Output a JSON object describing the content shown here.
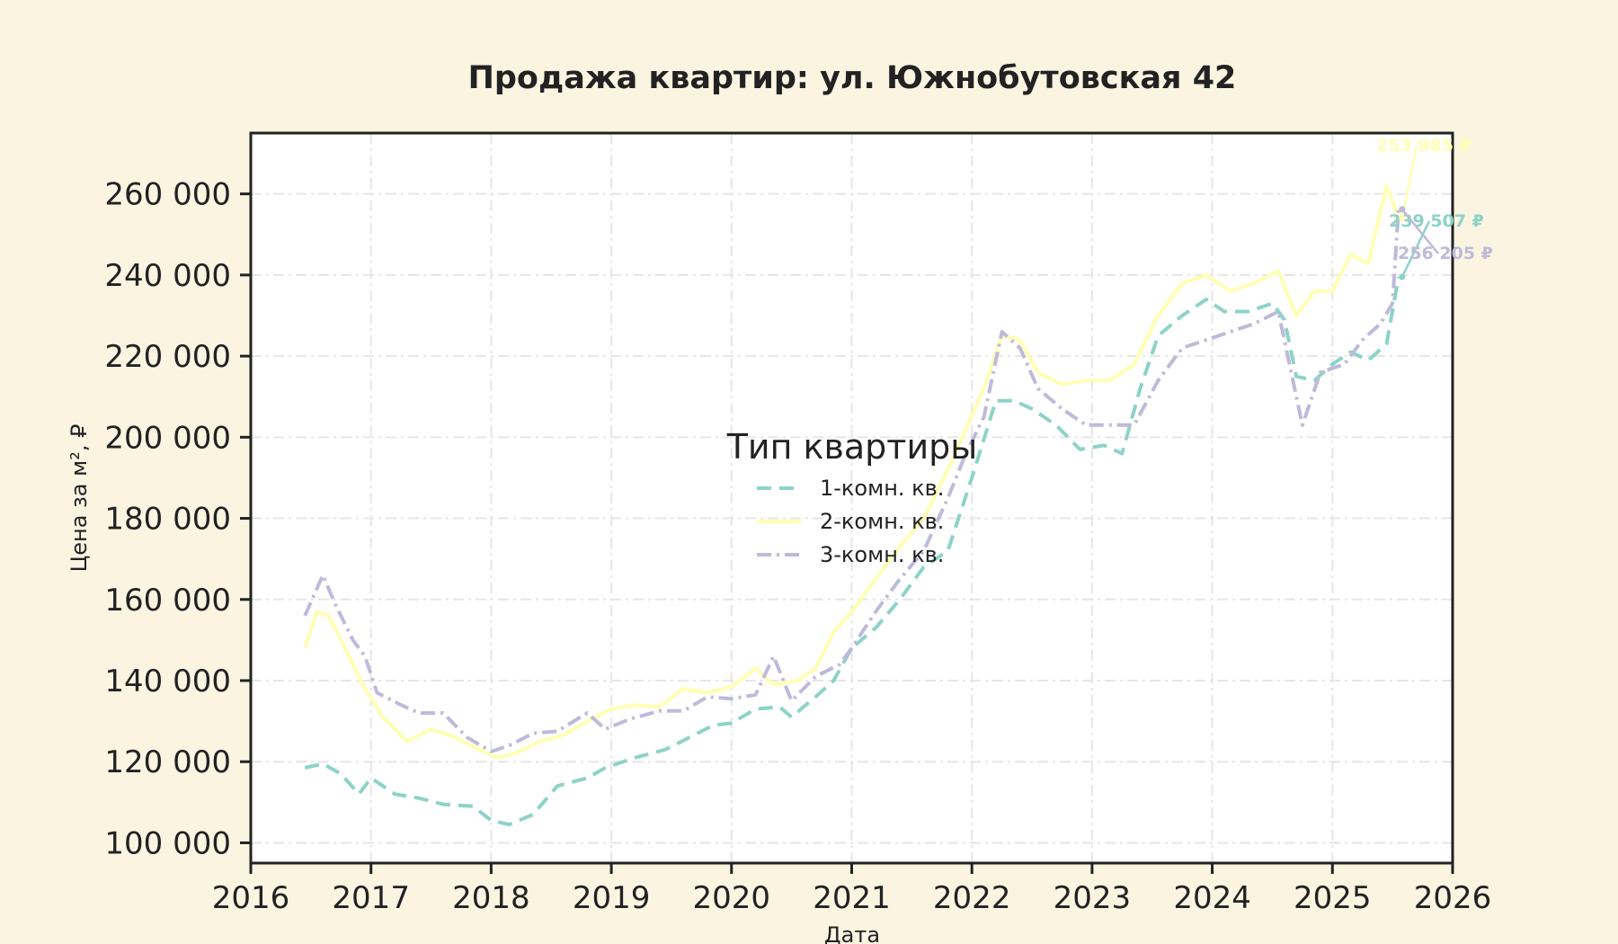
{
  "chart_data": {
    "type": "line",
    "title": "Продажа квартир: ул. Южнобутовская 42",
    "xlabel": "Дата",
    "ylabel": "Цена за м², ₽",
    "xlim": [
      2016,
      2026
    ],
    "ylim": [
      95000,
      275000
    ],
    "x_ticks": [
      "2016",
      "2017",
      "2018",
      "2019",
      "2020",
      "2021",
      "2022",
      "2023",
      "2024",
      "2025",
      "2026"
    ],
    "y_ticks": [
      {
        "value": 100000,
        "label": "100 000"
      },
      {
        "value": 120000,
        "label": "120 000"
      },
      {
        "value": 140000,
        "label": "140 000"
      },
      {
        "value": 160000,
        "label": "160 000"
      },
      {
        "value": 180000,
        "label": "180 000"
      },
      {
        "value": 200000,
        "label": "200 000"
      },
      {
        "value": 220000,
        "label": "220 000"
      },
      {
        "value": 240000,
        "label": "240 000"
      },
      {
        "value": 260000,
        "label": "260 000"
      }
    ],
    "grid": true,
    "legend": {
      "title": "Тип квартиры",
      "placement": "center"
    },
    "series": [
      {
        "name": "1-комн. кв.",
        "color": "#8dd3c7",
        "dash": "dashed",
        "end_label": "239 507 ₽",
        "points": [
          [
            2016.45,
            118500
          ],
          [
            2016.6,
            119500
          ],
          [
            2016.75,
            117000
          ],
          [
            2016.9,
            112000
          ],
          [
            2017.0,
            116000
          ],
          [
            2017.2,
            112000
          ],
          [
            2017.4,
            111000
          ],
          [
            2017.6,
            109500
          ],
          [
            2017.85,
            109000
          ],
          [
            2018.0,
            105500
          ],
          [
            2018.15,
            104500
          ],
          [
            2018.35,
            107000
          ],
          [
            2018.55,
            114000
          ],
          [
            2018.8,
            116000
          ],
          [
            2018.95,
            118500
          ],
          [
            2019.2,
            121000
          ],
          [
            2019.45,
            123000
          ],
          [
            2019.65,
            126000
          ],
          [
            2019.85,
            129000
          ],
          [
            2020.0,
            129500
          ],
          [
            2020.2,
            133000
          ],
          [
            2020.4,
            133500
          ],
          [
            2020.5,
            131000
          ],
          [
            2020.7,
            136000
          ],
          [
            2020.85,
            140000
          ],
          [
            2021.0,
            148000
          ],
          [
            2021.2,
            153000
          ],
          [
            2021.4,
            160000
          ],
          [
            2021.6,
            168000
          ],
          [
            2021.8,
            172000
          ],
          [
            2022.0,
            190000
          ],
          [
            2022.2,
            209000
          ],
          [
            2022.35,
            209000
          ],
          [
            2022.5,
            207000
          ],
          [
            2022.7,
            203000
          ],
          [
            2022.9,
            197000
          ],
          [
            2023.1,
            198000
          ],
          [
            2023.25,
            196000
          ],
          [
            2023.4,
            212000
          ],
          [
            2023.55,
            225000
          ],
          [
            2023.75,
            230000
          ],
          [
            2023.95,
            234000
          ],
          [
            2024.1,
            231000
          ],
          [
            2024.3,
            231000
          ],
          [
            2024.5,
            233000
          ],
          [
            2024.6,
            229000
          ],
          [
            2024.7,
            215000
          ],
          [
            2024.85,
            214000
          ],
          [
            2025.0,
            218000
          ],
          [
            2025.15,
            221000
          ],
          [
            2025.3,
            219000
          ],
          [
            2025.45,
            223000
          ],
          [
            2025.55,
            239507
          ]
        ]
      },
      {
        "name": "2-комн. кв.",
        "color": "#ffffb3",
        "dash": "solid",
        "end_label": "253 985 ₽",
        "points": [
          [
            2016.45,
            148000
          ],
          [
            2016.55,
            157000
          ],
          [
            2016.65,
            156000
          ],
          [
            2016.8,
            147000
          ],
          [
            2016.95,
            138000
          ],
          [
            2017.1,
            131000
          ],
          [
            2017.3,
            125000
          ],
          [
            2017.5,
            128000
          ],
          [
            2017.7,
            126000
          ],
          [
            2017.9,
            123000
          ],
          [
            2018.05,
            121000
          ],
          [
            2018.2,
            122000
          ],
          [
            2018.4,
            125000
          ],
          [
            2018.6,
            126500
          ],
          [
            2018.8,
            130000
          ],
          [
            2019.0,
            133000
          ],
          [
            2019.2,
            134000
          ],
          [
            2019.4,
            133500
          ],
          [
            2019.6,
            138000
          ],
          [
            2019.8,
            137000
          ],
          [
            2020.0,
            138500
          ],
          [
            2020.2,
            143000
          ],
          [
            2020.35,
            139000
          ],
          [
            2020.55,
            140000
          ],
          [
            2020.7,
            143000
          ],
          [
            2020.85,
            152000
          ],
          [
            2021.0,
            157000
          ],
          [
            2021.2,
            165000
          ],
          [
            2021.4,
            173000
          ],
          [
            2021.6,
            180000
          ],
          [
            2021.8,
            192000
          ],
          [
            2021.95,
            202000
          ],
          [
            2022.1,
            212000
          ],
          [
            2022.25,
            225000
          ],
          [
            2022.4,
            224000
          ],
          [
            2022.55,
            216000
          ],
          [
            2022.75,
            213000
          ],
          [
            2022.95,
            214000
          ],
          [
            2023.15,
            214000
          ],
          [
            2023.35,
            218000
          ],
          [
            2023.55,
            230000
          ],
          [
            2023.75,
            238000
          ],
          [
            2023.95,
            240000
          ],
          [
            2024.15,
            236000
          ],
          [
            2024.35,
            238000
          ],
          [
            2024.55,
            241000
          ],
          [
            2024.7,
            230000
          ],
          [
            2024.85,
            236000
          ],
          [
            2025.0,
            236000
          ],
          [
            2025.15,
            245000
          ],
          [
            2025.3,
            243000
          ],
          [
            2025.45,
            262000
          ],
          [
            2025.55,
            253985
          ]
        ]
      },
      {
        "name": "3-комн. кв.",
        "color": "#bebada",
        "dash": "dashdot",
        "end_label": "256 205 ₽",
        "points": [
          [
            2016.45,
            156000
          ],
          [
            2016.6,
            166000
          ],
          [
            2016.7,
            159000
          ],
          [
            2016.85,
            150000
          ],
          [
            2016.95,
            146000
          ],
          [
            2017.05,
            137000
          ],
          [
            2017.25,
            134000
          ],
          [
            2017.4,
            132000
          ],
          [
            2017.6,
            132000
          ],
          [
            2017.8,
            126000
          ],
          [
            2018.0,
            122500
          ],
          [
            2018.15,
            124000
          ],
          [
            2018.35,
            127000
          ],
          [
            2018.55,
            127500
          ],
          [
            2018.8,
            132000
          ],
          [
            2018.95,
            128000
          ],
          [
            2019.15,
            130500
          ],
          [
            2019.4,
            132500
          ],
          [
            2019.6,
            132500
          ],
          [
            2019.8,
            136000
          ],
          [
            2020.0,
            135500
          ],
          [
            2020.2,
            136500
          ],
          [
            2020.35,
            146000
          ],
          [
            2020.5,
            135000
          ],
          [
            2020.7,
            141000
          ],
          [
            2020.9,
            144000
          ],
          [
            2021.0,
            148000
          ],
          [
            2021.2,
            157000
          ],
          [
            2021.4,
            165000
          ],
          [
            2021.6,
            172000
          ],
          [
            2021.8,
            185000
          ],
          [
            2021.95,
            196000
          ],
          [
            2022.1,
            205000
          ],
          [
            2022.25,
            226000
          ],
          [
            2022.4,
            222000
          ],
          [
            2022.55,
            212000
          ],
          [
            2022.75,
            207000
          ],
          [
            2022.95,
            203000
          ],
          [
            2023.15,
            203000
          ],
          [
            2023.35,
            203000
          ],
          [
            2023.55,
            214000
          ],
          [
            2023.75,
            222000
          ],
          [
            2023.95,
            224000
          ],
          [
            2024.15,
            226000
          ],
          [
            2024.35,
            228000
          ],
          [
            2024.55,
            231000
          ],
          [
            2024.65,
            217000
          ],
          [
            2024.75,
            203000
          ],
          [
            2024.9,
            216000
          ],
          [
            2025.1,
            218000
          ],
          [
            2025.25,
            224000
          ],
          [
            2025.4,
            228000
          ],
          [
            2025.5,
            233000
          ],
          [
            2025.55,
            256205
          ]
        ]
      }
    ]
  }
}
